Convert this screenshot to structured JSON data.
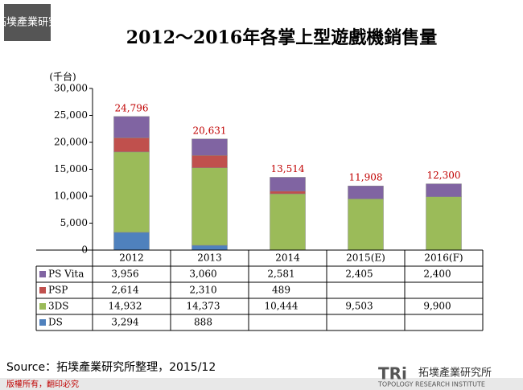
{
  "header": {
    "logo": "拓墣產業研究",
    "copyright": "版權所有，翻印必究",
    "footer_logo": "拓墣產業研究所",
    "footer_logo_en": "TOPOLOGY RESEARCH INSTITUTE",
    "source": "Source：拓墣產業研究所整理，2015/12"
  },
  "chart_data": {
    "type": "stacked-bar",
    "title": "2012～2016年各掌上型遊戲機銷售量",
    "y_label": "(千台)",
    "categories": [
      "2012",
      "2013",
      "2014",
      "2015(E)",
      "2016(F)"
    ],
    "series": [
      {
        "name": "DS",
        "color": "#4f81bd",
        "values": [
          3294,
          888,
          null,
          null,
          null
        ],
        "value_labels": [
          "3,294",
          "888",
          null,
          null,
          null
        ]
      },
      {
        "name": "3DS",
        "color": "#9bbb59",
        "values": [
          14932,
          14373,
          10444,
          9503,
          9900
        ],
        "value_labels": [
          "14,932",
          "14,373",
          "10,444",
          "9,503",
          "9,900"
        ]
      },
      {
        "name": "PSP",
        "color": "#c0504d",
        "values": [
          2614,
          2310,
          489,
          null,
          null
        ],
        "value_labels": [
          "2,614",
          "2,310",
          "489",
          null,
          null
        ]
      },
      {
        "name": "PS Vita",
        "color": "#8064a2",
        "values": [
          3956,
          3060,
          2581,
          2405,
          2400
        ],
        "value_labels": [
          "3,956",
          "3,060",
          "2,581",
          "2,405",
          "2,400"
        ]
      }
    ],
    "totals": {
      "values": [
        24796,
        20631,
        13514,
        11908,
        12300
      ],
      "value_labels": [
        "24,796",
        "20,631",
        "13,514",
        "11,908",
        "12,300"
      ]
    },
    "ylim": [
      0,
      30000
    ],
    "yticks": [
      0,
      {
        "value": 5000,
        "label": "5,000"
      },
      {
        "value": 10000,
        "label": "10,000"
      },
      {
        "value": 15000,
        "label": "15,000"
      },
      {
        "value": 20000,
        "label": "20,000"
      },
      {
        "value": 25000,
        "label": "25,000"
      },
      {
        "value": 30000,
        "label": "30,000"
      }
    ]
  }
}
